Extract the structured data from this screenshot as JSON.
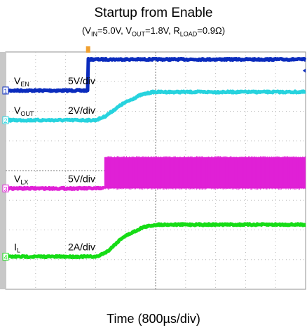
{
  "chart_data": {
    "type": "line",
    "title": "Startup from Enable",
    "subtitle": {
      "vin_label": "V",
      "vin_sub": "IN",
      "vin_val": "=5.0V, ",
      "vout_label": "V",
      "vout_sub": "OUT",
      "vout_val": "=1.8V, ",
      "rload_label": "R",
      "rload_sub": "LOAD",
      "rload_val": "=0.9Ω"
    },
    "xlabel": "Time (800µs/div)",
    "grid": true,
    "time_per_div_us": 800,
    "x_divisions": 10,
    "y_divisions": 8,
    "channels": [
      {
        "index": "1",
        "name": "V",
        "sub": "EN",
        "scale": "5V/div",
        "color": "#0a2bbd",
        "ground_div": 6.7,
        "points": [
          [
            0,
            0
          ],
          [
            2.75,
            0
          ],
          [
            2.75,
            1.05
          ],
          [
            10,
            1.05
          ]
        ]
      },
      {
        "index": "2",
        "name": "V",
        "sub": "OUT",
        "scale": "2V/div",
        "color": "#27d3de",
        "ground_div": 5.7,
        "points": [
          [
            0,
            0
          ],
          [
            3.0,
            0
          ],
          [
            3.3,
            0.12
          ],
          [
            3.9,
            0.55
          ],
          [
            4.5,
            0.85
          ],
          [
            4.9,
            0.95
          ],
          [
            10,
            0.95
          ]
        ]
      },
      {
        "index": "3",
        "name": "V",
        "sub": "LX",
        "scale": "5V/div",
        "color": "#e020d6",
        "ground_div": 3.4,
        "band": {
          "start": 3.3,
          "low": 0,
          "high": 1.05
        },
        "points": [
          [
            0,
            0
          ],
          [
            3.3,
            0
          ]
        ]
      },
      {
        "index": "4",
        "name": "I",
        "sub": "L",
        "scale": "2A/div",
        "color": "#16dc16",
        "ground_div": 1.1,
        "points": [
          [
            0,
            0
          ],
          [
            3.05,
            0
          ],
          [
            3.4,
            0.18
          ],
          [
            3.9,
            0.65
          ],
          [
            4.6,
            1.0
          ],
          [
            5.05,
            1.08
          ],
          [
            10,
            1.08
          ]
        ]
      }
    ]
  }
}
